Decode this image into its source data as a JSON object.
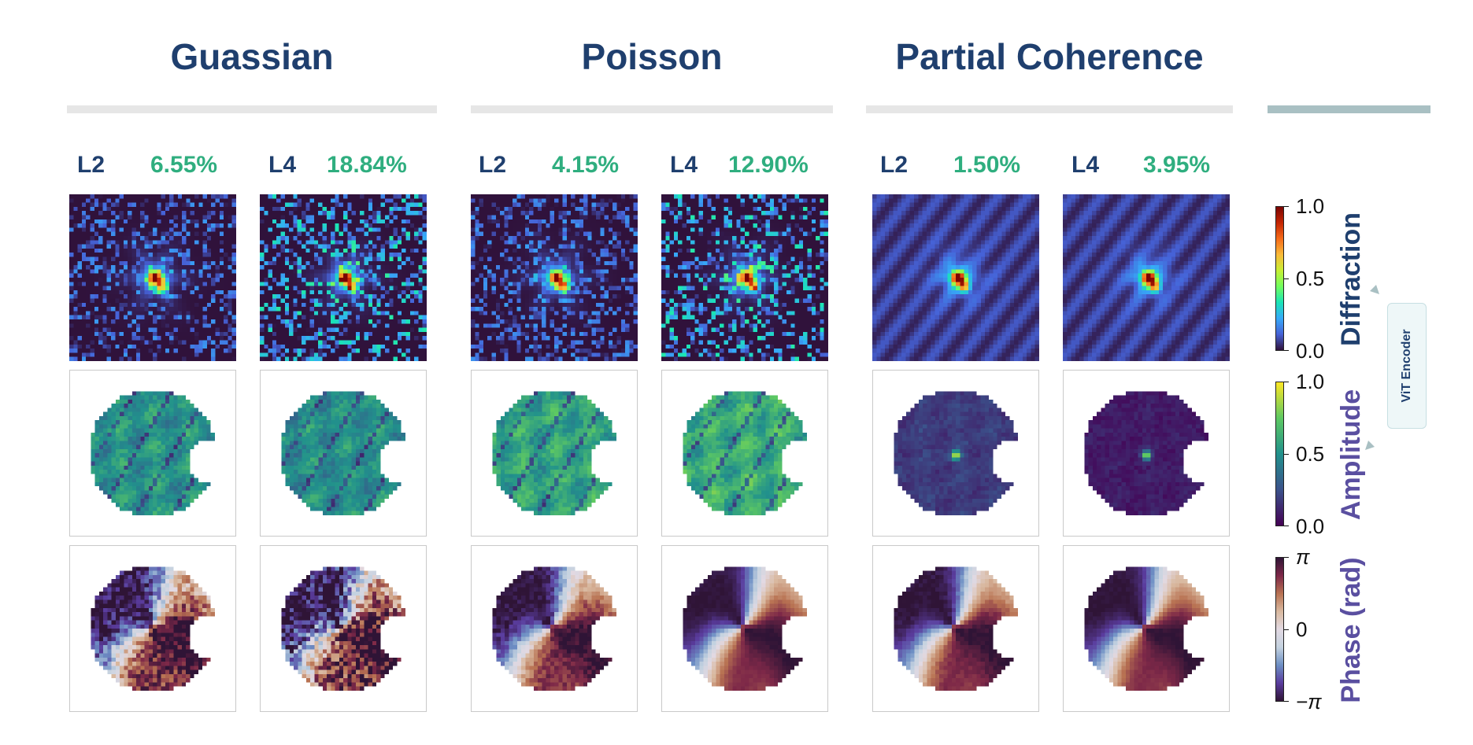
{
  "groups": [
    {
      "title": "Guassian",
      "levels": [
        {
          "name": "L2",
          "value": "6.55%",
          "amp_peak": 0.62,
          "phase_noise": 0.55
        },
        {
          "name": "L4",
          "value": "18.84%",
          "amp_peak": 0.6,
          "phase_noise": 0.8
        }
      ]
    },
    {
      "title": "Poisson",
      "levels": [
        {
          "name": "L2",
          "value": "4.15%",
          "amp_peak": 0.7,
          "phase_noise": 0.25
        },
        {
          "name": "L4",
          "value": "12.90%",
          "amp_peak": 0.75,
          "phase_noise": 0.05
        }
      ]
    },
    {
      "title": "Partial Coherence",
      "levels": [
        {
          "name": "L2",
          "value": "1.50%",
          "amp_peak": 0.22,
          "phase_noise": 0.1
        },
        {
          "name": "L4",
          "value": "3.95%",
          "amp_peak": 0.1,
          "phase_noise": 0.05
        }
      ]
    }
  ],
  "colorbars": {
    "diffraction": {
      "label": "Diffraction",
      "ticks": [
        "1.0",
        "0.5",
        "0.0"
      ],
      "color": "#1f3f6e",
      "colormap": "turbo"
    },
    "amplitude": {
      "label": "Amplitude",
      "ticks": [
        "1.0",
        "0.5",
        "0.0"
      ],
      "color": "#5a4fa0",
      "colormap": "viridis"
    },
    "phase": {
      "label": "Phase (rad)",
      "ticks": [
        "π",
        "0",
        "−π"
      ],
      "color": "#5a4fa0",
      "colormap": "twilight"
    }
  },
  "encoder": {
    "label": "ViT Encoder"
  },
  "colors": {
    "title": "#1f3f6e",
    "percent": "#2fae7f",
    "group_bar": "#e6e6e6",
    "right_bar": "#a9c0c3"
  }
}
